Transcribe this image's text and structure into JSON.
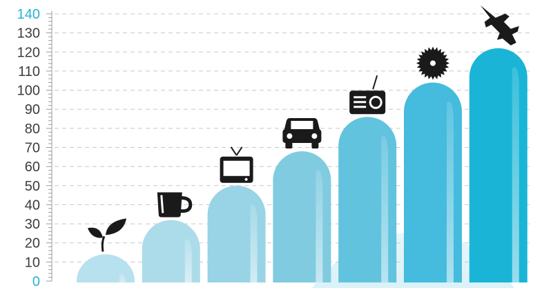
{
  "chart_data": {
    "type": "bar",
    "title": "",
    "xlabel": "",
    "ylabel": "",
    "ylim": [
      0,
      140
    ],
    "yticks": [
      0,
      10,
      20,
      30,
      40,
      50,
      60,
      70,
      80,
      90,
      100,
      110,
      120,
      130,
      140
    ],
    "grid": true,
    "categories": [
      "plant",
      "cup",
      "tv",
      "car",
      "radio",
      "saw-blade",
      "jet"
    ],
    "values": [
      14,
      32,
      50,
      68,
      86,
      104,
      122
    ],
    "bar_icons": [
      "leaf-icon",
      "cup-icon",
      "tv-icon",
      "car-icon",
      "radio-icon",
      "saw-blade-icon",
      "fighter-jet-icon"
    ],
    "bar_colors": [
      "#b7e1ee",
      "#acdcea",
      "#98d4e5",
      "#80cbe0",
      "#61c3de",
      "#45bbdd",
      "#1ab5d6"
    ],
    "colors": {
      "axis_text": "#3c3c3c",
      "accent": "#27b3d6",
      "grid": "#c8c8c8",
      "icon": "#1a1a1a"
    }
  }
}
